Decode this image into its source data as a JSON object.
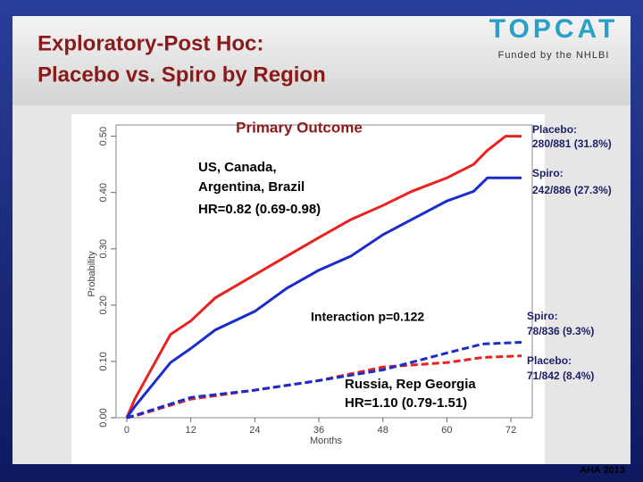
{
  "slide": {
    "title_lines": [
      "Exploratory-Post Hoc:",
      "Placebo vs. Spiro by Region"
    ],
    "logo": "TOPCAT",
    "logo_caption": "Funded by the NHLBI",
    "footer": "AHA 2013"
  },
  "chart_data": {
    "type": "line",
    "title": "Primary Outcome",
    "x_label": "Months",
    "y_label": "Probability",
    "xlim": [
      -2,
      76
    ],
    "ylim": [
      0,
      0.52
    ],
    "xticks": [
      0,
      12,
      24,
      36,
      48,
      60,
      72
    ],
    "yticks": [
      {
        "value": 0,
        "label": "0.00"
      },
      {
        "value": 0.1,
        "label": "0.10"
      },
      {
        "value": 0.2,
        "label": "0.20"
      },
      {
        "value": 0.3,
        "label": "0.30"
      },
      {
        "value": 0.4,
        "label": "0.40"
      },
      {
        "value": 0.5,
        "label": "0.50"
      }
    ],
    "series": [
      {
        "color": "#e8231f",
        "dashed": false,
        "x": [
          0,
          1.5,
          8.2,
          12,
          16.6,
          24,
          30,
          36,
          42,
          48,
          53.4,
          60,
          65,
          67.6,
          71,
          74
        ],
        "values": [
          0,
          0.033,
          0.148,
          0.172,
          0.213,
          0.254,
          0.287,
          0.32,
          0.352,
          0.377,
          0.402,
          0.426,
          0.45,
          0.475,
          0.5,
          0.5
        ]
      },
      {
        "color": "#1a2ccc",
        "dashed": false,
        "x": [
          0,
          1.5,
          8.2,
          12,
          16.6,
          24,
          30,
          36,
          42,
          48,
          53.4,
          60,
          65,
          67.6,
          74
        ],
        "values": [
          0,
          0.02,
          0.098,
          0.123,
          0.156,
          0.189,
          0.23,
          0.262,
          0.287,
          0.325,
          0.352,
          0.385,
          0.402,
          0.426,
          0.426
        ]
      },
      {
        "color": "#e8231f",
        "dashed": true,
        "x": [
          0,
          1.5,
          12,
          24,
          36,
          48,
          60,
          66.7,
          74
        ],
        "values": [
          0,
          0.003,
          0.033,
          0.049,
          0.066,
          0.09,
          0.098,
          0.107,
          0.11
        ]
      },
      {
        "color": "#1a2ccc",
        "dashed": true,
        "x": [
          0,
          1.5,
          12,
          24,
          36,
          48,
          60,
          66.7,
          74
        ],
        "values": [
          0,
          0.004,
          0.036,
          0.049,
          0.066,
          0.085,
          0.115,
          0.131,
          0.134
        ]
      }
    ],
    "annotations": [
      "US, Canada,",
      "Argentina, Brazil",
      "HR=0.82 (0.69-0.98)",
      "Interaction p=0.122",
      "Russia, Rep Georgia",
      "HR=1.10 (0.79-1.51)",
      "Placebo:",
      "280/881 (31.8%)",
      "Spiro:",
      "242/886 (27.3%)",
      "Spiro:",
      "78/836 (9.3%)",
      "Placebo:",
      "71/842 (8.4%)"
    ]
  }
}
